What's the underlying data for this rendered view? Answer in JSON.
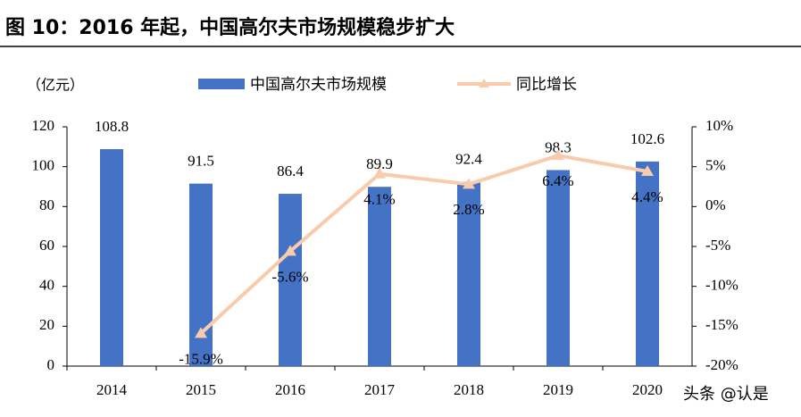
{
  "chart_data": {
    "type": "bar",
    "title": "图 10：2016 年起，中国高尔夫市场规模稳步扩大",
    "y_label": "（亿元）",
    "watermark": "头条 @认是",
    "categories": [
      "2014",
      "2015",
      "2016",
      "2017",
      "2018",
      "2019",
      "2020"
    ],
    "series": [
      {
        "name": "中国高尔夫市场规模",
        "type": "bar",
        "color": "#4472c4",
        "values": [
          108.8,
          91.5,
          86.4,
          89.9,
          92.4,
          98.3,
          102.6
        ]
      },
      {
        "name": "同比增长",
        "type": "line",
        "axis": "y2",
        "color": "#f8cbad",
        "values": [
          null,
          -15.9,
          -5.6,
          4.1,
          2.8,
          6.4,
          4.4
        ],
        "value_labels": [
          null,
          "-15.9%",
          "-5.6%",
          "4.1%",
          "2.8%",
          "6.4%",
          "4.4%"
        ]
      }
    ],
    "ylim": [
      0,
      120
    ],
    "yticks": [
      0,
      20,
      40,
      60,
      80,
      100,
      120
    ],
    "y2lim": [
      -20,
      10
    ],
    "y2ticks": [
      {
        "value": -20,
        "label": "-20%"
      },
      {
        "value": -15,
        "label": "-15%"
      },
      {
        "value": -10,
        "label": "-10%"
      },
      {
        "value": -5,
        "label": "-5%"
      },
      {
        "value": 0,
        "label": "0%"
      },
      {
        "value": 5,
        "label": "5%"
      },
      {
        "value": 10,
        "label": "10%"
      }
    ],
    "grid": false
  }
}
